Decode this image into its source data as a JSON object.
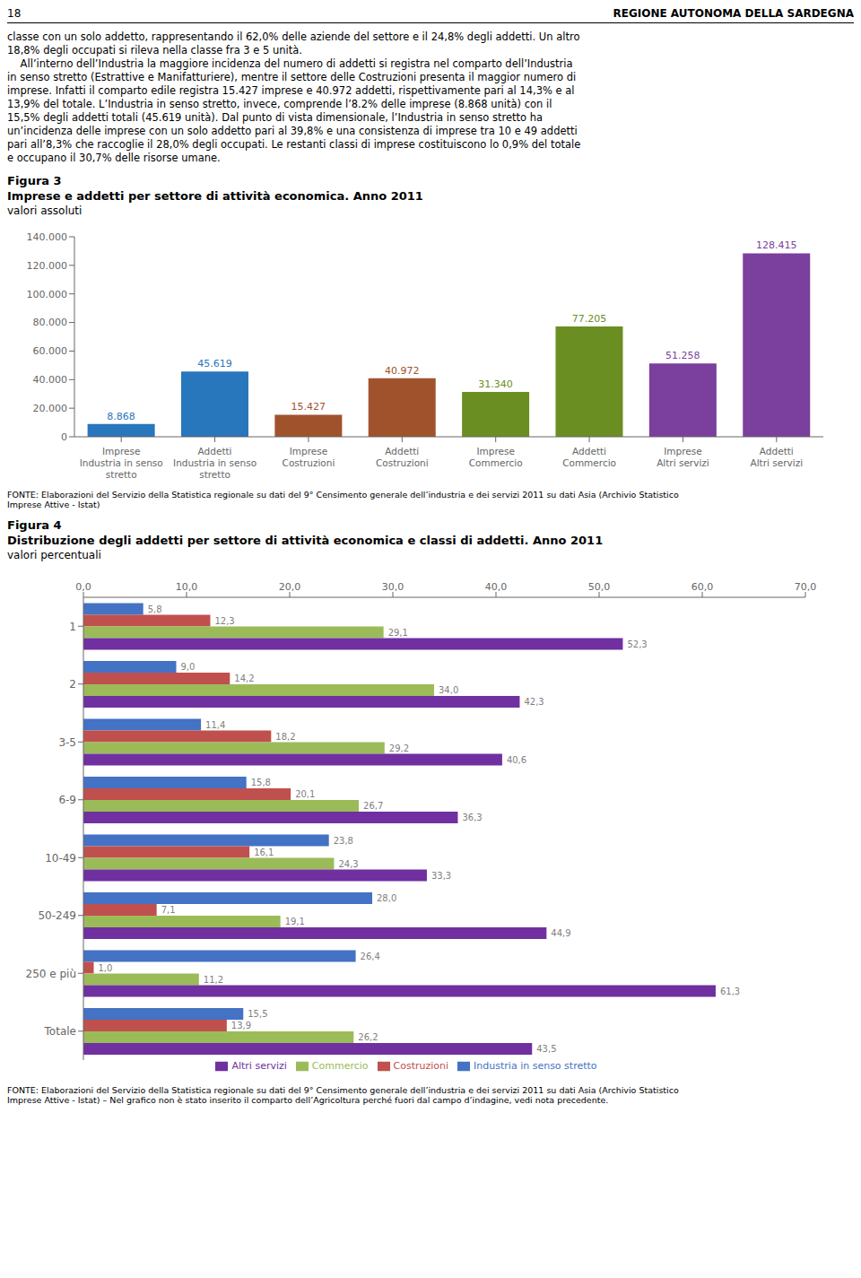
{
  "annotations": [
    "18",
    "REGIONE AUTONOMA DELLA SARDEGNA",
    "classe con un solo addetto, rappresentando il 62,0% delle aziende del settore e il 24,8% degli addetti. Un altro",
    "18,8% degli occupati si rileva nella classe fra 3 e 5 unità.",
    "    All’interno dell’Industria la maggiore incidenza del numero di addetti si registra nel comparto dell’Industria",
    "in senso stretto (Estrattive e Manifatturiere), mentre il settore delle Costruzioni presenta il maggior numero di",
    "imprese. Infatti il comparto edile registra 15.427 imprese e 40.972 addetti, rispettivamente pari al 14,3% e al",
    "13,9% del totale. L’Industria in senso stretto, invece, comprende l’8.2% delle imprese (8.868 unità) con il",
    "15,5% degli addetti totali (45.619 unità). Dal punto di vista dimensionale, l’Industria in senso stretto ha",
    "un’incidenza delle imprese con un solo addetto pari al 39,8% e una consistenza di imprese tra 10 e 49 addetti",
    "pari all’8,3% che raccoglie il 28,0% degli occupati. Le restanti classi di imprese costituiscono lo 0,9% del totale",
    "e occupano il 30,7% delle risorse umane."
  ],
  "chart_data": [
    {
      "type": "bar",
      "title": "Figura 3",
      "subtitle": "Imprese e addetti per settore di attività economica. Anno 2011",
      "annotations": [
        "valori assoluti",
        "FONTE: Elaborazioni del Servizio della Statistica regionale su dati del 9° Censimento generale dell’industria e dei servizi 2011 su dati Asia (Archivio Statistico\nImprese Attive - Istat)"
      ],
      "categories": [
        "Imprese\nIndustria in senso\nstretto",
        "Addetti\nIndustria in senso\nstretto",
        "Imprese\nCostruzioni",
        "Addetti\nCostruzioni",
        "Imprese\nCommercio",
        "Addetti\nCommercio",
        "Imprese\nAltri servizi",
        "Addetti\nAltri servizi"
      ],
      "values": [
        8868,
        45619,
        15427,
        40972,
        31340,
        77205,
        51258,
        128415
      ],
      "value_labels": [
        "8.868",
        "45.619",
        "15.427",
        "40.972",
        "31.340",
        "77.205",
        "51.258",
        "128.415"
      ],
      "colors": [
        "#2876BB",
        "#2876BB",
        "#A0522D",
        "#A0522D",
        "#6B8E23",
        "#6B8E23",
        "#7B3F9E",
        "#7B3F9E"
      ],
      "ylim": [
        0,
        140000
      ],
      "yticks": [
        0,
        {
          "value": 20000,
          "label": "20.000"
        },
        {
          "value": 40000,
          "label": "40.000"
        },
        {
          "value": 60000,
          "label": "60.000"
        },
        {
          "value": 80000,
          "label": "80.000"
        },
        {
          "value": 100000,
          "label": "100.000"
        },
        {
          "value": 120000,
          "label": "120.000"
        },
        {
          "value": 140000,
          "label": "140.000"
        }
      ],
      "data_labels": true,
      "grid": false
    },
    {
      "type": "bar",
      "orientation": "horizontal",
      "title": "Figura 4",
      "subtitle": "Distribuzione degli addetti per settore di attività economica e classi di addetti. Anno 2011",
      "annotations": [
        "valori percentuali",
        "FONTE: Elaborazioni del Servizio della Statistica regionale su dati del 9° Censimento generale dell’industria e dei servizi 2011 su dati Asia (Archivio Statistico\nImprese Attive - Istat) – Nel grafico non è stato inserito il comparto dell’Agricoltura perché fuori dal campo d’indagine, vedi nota precedente."
      ],
      "categories": [
        "1",
        "2",
        "3-5",
        "6-9",
        "10-49",
        "50-249",
        "250 e più",
        "Totale"
      ],
      "series": [
        {
          "name": "Industria in senso stretto",
          "color": "#4472C4",
          "values": [
            5.8,
            9.0,
            11.4,
            15.8,
            23.8,
            28.0,
            26.4,
            15.5
          ],
          "value_labels": [
            "5,8",
            "9,0",
            "11,4",
            "15,8",
            "23,8",
            "28,0",
            "26,4",
            "15,5"
          ]
        },
        {
          "name": "Costruzioni",
          "color": "#C0504D",
          "values": [
            12.3,
            14.2,
            18.2,
            20.1,
            16.1,
            7.1,
            1.0,
            13.9
          ],
          "value_labels": [
            "12,3",
            "14,2",
            "18,2",
            "20,1",
            "16,1",
            "7,1",
            "1,0",
            "13,9"
          ]
        },
        {
          "name": "Commercio",
          "color": "#9BBB59",
          "values": [
            29.1,
            34.0,
            29.2,
            26.7,
            24.3,
            19.1,
            11.2,
            26.2
          ],
          "value_labels": [
            "29,1",
            "34,0",
            "29,2",
            "26,7",
            "24,3",
            "19,1",
            "11,2",
            "26,2"
          ]
        },
        {
          "name": "Altri servizi",
          "color": "#7030A0",
          "values": [
            52.3,
            42.3,
            40.6,
            36.3,
            33.3,
            44.9,
            61.3,
            43.5
          ],
          "value_labels": [
            "52,3",
            "42,3",
            "40,6",
            "36,3",
            "33,3",
            "44,9",
            "61,3",
            "43,5"
          ]
        }
      ],
      "xlim": [
        0,
        70
      ],
      "xticks": [
        {
          "value": 0,
          "label": "0,0"
        },
        {
          "value": 10,
          "label": "10,0"
        },
        {
          "value": 20,
          "label": "20,0"
        },
        {
          "value": 30,
          "label": "30,0"
        },
        {
          "value": 40,
          "label": "40,0"
        },
        {
          "value": 50,
          "label": "50,0"
        },
        {
          "value": 60,
          "label": "60,0"
        },
        {
          "value": 70,
          "label": "70,0"
        }
      ],
      "data_labels": true,
      "legend": "bottom",
      "grid": false
    }
  ]
}
